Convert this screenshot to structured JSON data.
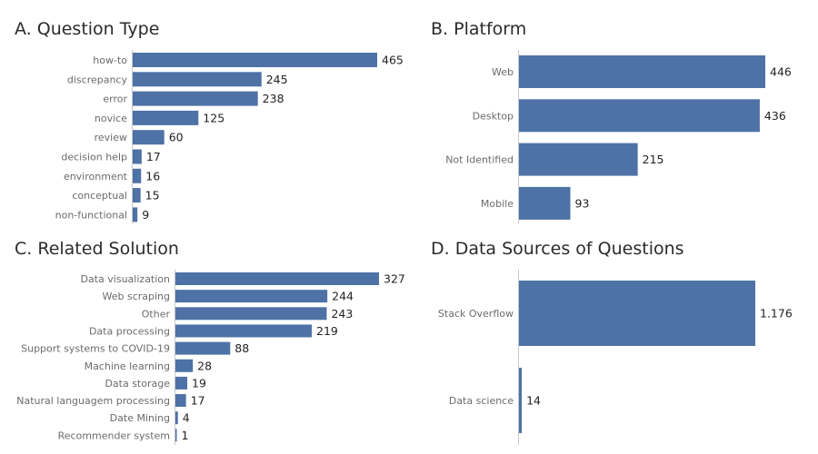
{
  "bar_color": "#4e72a6",
  "chart_data": [
    {
      "id": "A",
      "type": "bar",
      "orientation": "horizontal",
      "title": "A. Question Type",
      "categories": [
        "how-to",
        "discrepancy",
        "error",
        "novice",
        "review",
        "decision help",
        "environment",
        "conceptual",
        "non-functional"
      ],
      "values": [
        465,
        245,
        238,
        125,
        60,
        17,
        16,
        15,
        9
      ],
      "value_labels": [
        "465",
        "245",
        "238",
        "125",
        "60",
        "17",
        "16",
        "15",
        "9"
      ],
      "xlim": [
        0,
        465
      ],
      "grid": false,
      "legend": "none"
    },
    {
      "id": "B",
      "type": "bar",
      "orientation": "horizontal",
      "title": "B. Platform",
      "categories": [
        "Web",
        "Desktop",
        "Not Identified",
        "Mobile"
      ],
      "values": [
        446,
        436,
        215,
        93
      ],
      "value_labels": [
        "446",
        "436",
        "215",
        "93"
      ],
      "xlim": [
        0,
        446
      ],
      "grid": false,
      "legend": "none"
    },
    {
      "id": "C",
      "type": "bar",
      "orientation": "horizontal",
      "title": "C. Related Solution",
      "categories": [
        "Data visualization",
        "Web scraping",
        "Other",
        "Data processing",
        "Support systems to COVID-19",
        "Machine learning",
        "Data storage",
        "Natural languagem processing",
        "Date Mining",
        "Recommender system"
      ],
      "values": [
        327,
        244,
        243,
        219,
        88,
        28,
        19,
        17,
        4,
        1
      ],
      "value_labels": [
        "327",
        "244",
        "243",
        "219",
        "88",
        "28",
        "19",
        "17",
        "4",
        "1"
      ],
      "xlim": [
        0,
        327
      ],
      "grid": false,
      "legend": "none"
    },
    {
      "id": "D",
      "type": "bar",
      "orientation": "horizontal",
      "title": "D. Data Sources of Questions",
      "categories": [
        "Stack Overflow",
        "Data science"
      ],
      "values": [
        1176,
        14
      ],
      "value_labels": [
        "1.176",
        "14"
      ],
      "xlim": [
        0,
        1176
      ],
      "grid": false,
      "legend": "none"
    }
  ]
}
